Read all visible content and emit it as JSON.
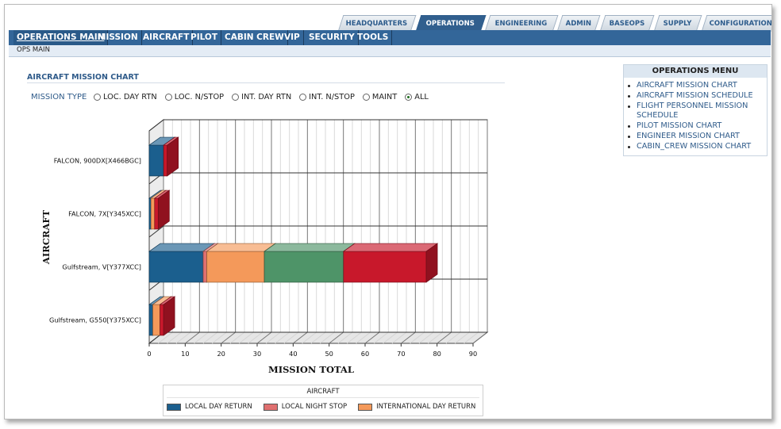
{
  "top_tabs": [
    {
      "label": "HEADQUARTERS",
      "active": false
    },
    {
      "label": "OPERATIONS",
      "active": true
    },
    {
      "label": "ENGINEERING",
      "active": false
    },
    {
      "label": "ADMIN",
      "active": false
    },
    {
      "label": "BASEOPS",
      "active": false
    },
    {
      "label": "SUPPLY",
      "active": false
    },
    {
      "label": "CONFIGURATION",
      "active": false
    }
  ],
  "main_nav": [
    {
      "label": "OPERATIONS MAIN",
      "active": true
    },
    {
      "label": "MISSION",
      "active": false
    },
    {
      "label": "AIRCRAFT",
      "active": false
    },
    {
      "label": "PILOT",
      "active": false
    },
    {
      "label": "CABIN CREW",
      "active": false
    },
    {
      "label": "VIP",
      "active": false
    },
    {
      "label": "SECURITY",
      "active": false
    },
    {
      "label": "TOOLS",
      "active": false
    }
  ],
  "breadcrumb": "OPS MAIN",
  "section_title": "AIRCRAFT MISSION CHART",
  "mission_type": {
    "label": "MISSION TYPE",
    "options": [
      {
        "label": "LOC. DAY RTN",
        "selected": false
      },
      {
        "label": "LOC. N/STOP",
        "selected": false
      },
      {
        "label": "INT. DAY RTN",
        "selected": false
      },
      {
        "label": "INT. N/STOP",
        "selected": false
      },
      {
        "label": "MAINT",
        "selected": false
      },
      {
        "label": "ALL",
        "selected": true
      }
    ]
  },
  "chart_data": {
    "type": "bar",
    "orientation": "horizontal",
    "stacked": true,
    "three_d": true,
    "xlabel": "MISSION TOTAL",
    "ylabel": "AIRCRAFT",
    "xlim": [
      0,
      90
    ],
    "xticks": [
      0,
      10,
      20,
      30,
      40,
      50,
      60,
      70,
      80,
      90
    ],
    "grid": true,
    "legend_title": "AIRCRAFT",
    "legend_position": "bottom",
    "categories": [
      "FALCON, 900DX[X466BGC]",
      "FALCON, 7X[Y345XCC]",
      "Gulfstream, V[Y377XCC]",
      "Gulfstream, G550[Y375XCC]"
    ],
    "series": [
      {
        "name": "LOCAL DAY RETURN",
        "color": "#1b5f8e",
        "values": [
          4,
          0.5,
          15,
          1
        ]
      },
      {
        "name": "LOCAL NIGHT STOP",
        "color": "#e07070",
        "values": [
          0,
          0,
          1,
          0
        ]
      },
      {
        "name": "INTERNATIONAL DAY RETURN",
        "color": "#f4995a",
        "values": [
          0,
          1,
          16,
          2
        ]
      },
      {
        "name": "",
        "color": "#4e9468",
        "values": [
          0,
          0,
          22,
          0
        ]
      },
      {
        "name": "",
        "color": "#c8182b",
        "values": [
          1,
          1,
          23,
          1
        ]
      }
    ]
  },
  "ops_menu": {
    "title": "OPERATIONS MENU",
    "items": [
      "AIRCRAFT MISSION CHART",
      "AIRCRAFT MISSION SCHEDULE",
      "FLIGHT PERSONNEL MISSION SCHEDULE",
      "PILOT MISSION CHART",
      "ENGINEER MISSION CHART",
      "CABIN_CREW MISSION CHART"
    ]
  }
}
